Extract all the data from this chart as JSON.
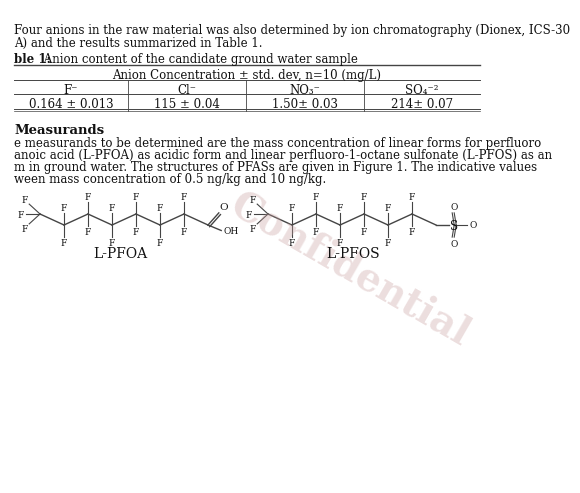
{
  "background_color": "#ffffff",
  "confidential_text": "Confidential",
  "confidential_color": "#c8a0a0",
  "confidential_alpha": 0.35,
  "top_text_lines": [
    "Four anions in the raw material was also determined by ion chromatography (Dionex, ICS-30",
    "A) and the results summarized in Table 1."
  ],
  "table_title_bold": "ble 1:",
  "table_title_rest": " Anion content of the candidate ground water sample",
  "table_header": "Anion Concentration ± std. dev, n=10 (mg/L)",
  "table_col_headers": [
    "F⁻",
    "Cl⁻",
    "NO₃⁻",
    "SO₄⁻²"
  ],
  "table_values": [
    "0.164 ± 0.013",
    "115 ± 0.04",
    "1.50± 0.03",
    "214± 0.07"
  ],
  "section_title": "Measurands",
  "section_text_lines": [
    "e measurands to be determined are the mass concentration of linear forms for perfluoro",
    "anoic acid (L-PFOA) as acidic form and linear perfluoro-1-octane sulfonate (L-PFOS) as an",
    "m in ground water. The structures of PFASs are given in Figure 1. The indicative values",
    "ween mass concentration of 0.5 ng/kg and 10 ng/kg."
  ],
  "label_pfoa": "L-PFOA",
  "label_pfos": "L-PFOS",
  "line_color": "#444444",
  "text_color": "#111111",
  "font_size_body": 8.5,
  "font_size_label": 10.0,
  "font_size_chem": 6.5
}
